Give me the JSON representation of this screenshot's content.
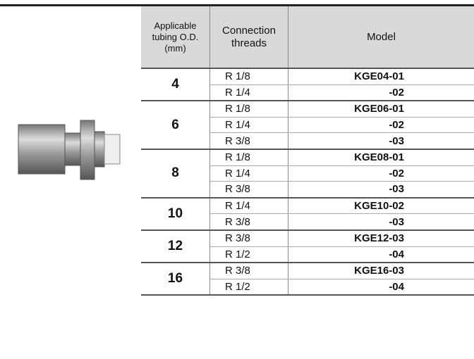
{
  "table": {
    "header": [
      "Applicable tubing O.D. (mm)",
      "Connection threads",
      "Model"
    ],
    "groups": [
      {
        "od": "4",
        "rows": [
          {
            "thread": "R 1/8",
            "model": "KGE04-01"
          },
          {
            "thread": "R 1/4",
            "model": "-02"
          }
        ]
      },
      {
        "od": "6",
        "rows": [
          {
            "thread": "R 1/8",
            "model": "KGE06-01"
          },
          {
            "thread": "R 1/4",
            "model": "-02"
          },
          {
            "thread": "R 3/8",
            "model": "-03"
          }
        ]
      },
      {
        "od": "8",
        "rows": [
          {
            "thread": "R 1/8",
            "model": "KGE08-01"
          },
          {
            "thread": "R 1/4",
            "model": "-02"
          },
          {
            "thread": "R 3/8",
            "model": "-03"
          }
        ]
      },
      {
        "od": "10",
        "rows": [
          {
            "thread": "R 1/4",
            "model": "KGE10-02"
          },
          {
            "thread": "R 3/8",
            "model": "-03"
          }
        ]
      },
      {
        "od": "12",
        "rows": [
          {
            "thread": "R 3/8",
            "model": "KGE12-03"
          },
          {
            "thread": "R 1/2",
            "model": "-04"
          }
        ]
      },
      {
        "od": "16",
        "rows": [
          {
            "thread": "R 3/8",
            "model": "KGE16-03"
          },
          {
            "thread": "R 1/2",
            "model": "-04"
          }
        ]
      }
    ]
  }
}
